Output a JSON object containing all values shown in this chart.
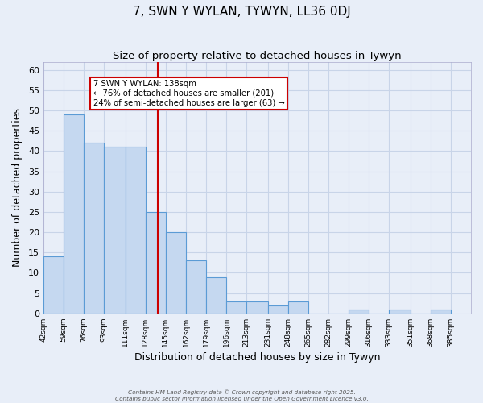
{
  "title": "7, SWN Y WYLAN, TYWYN, LL36 0DJ",
  "subtitle": "Size of property relative to detached houses in Tywyn",
  "xlabel": "Distribution of detached houses by size in Tywyn",
  "ylabel": "Number of detached properties",
  "bar_left_edges": [
    42,
    59,
    76,
    93,
    111,
    128,
    145,
    162,
    179,
    196,
    213,
    231,
    248,
    265,
    282,
    299,
    316,
    333,
    351,
    368
  ],
  "bar_widths": [
    17,
    17,
    17,
    18,
    17,
    17,
    17,
    17,
    17,
    17,
    18,
    17,
    17,
    17,
    17,
    17,
    17,
    18,
    17,
    17
  ],
  "bar_heights": [
    14,
    49,
    42,
    41,
    41,
    25,
    20,
    13,
    9,
    3,
    3,
    2,
    3,
    0,
    0,
    1,
    0,
    1,
    0,
    1
  ],
  "bar_color": "#c5d8f0",
  "bar_edge_color": "#5b9bd5",
  "xlim": [
    42,
    402
  ],
  "ylim": [
    0,
    62
  ],
  "yticks": [
    0,
    5,
    10,
    15,
    20,
    25,
    30,
    35,
    40,
    45,
    50,
    55,
    60
  ],
  "xtick_labels": [
    "42sqm",
    "59sqm",
    "76sqm",
    "93sqm",
    "111sqm",
    "128sqm",
    "145sqm",
    "162sqm",
    "179sqm",
    "196sqm",
    "213sqm",
    "231sqm",
    "248sqm",
    "265sqm",
    "282sqm",
    "299sqm",
    "316sqm",
    "333sqm",
    "351sqm",
    "368sqm",
    "385sqm"
  ],
  "xtick_positions": [
    42,
    59,
    76,
    93,
    111,
    128,
    145,
    162,
    179,
    196,
    213,
    231,
    248,
    265,
    282,
    299,
    316,
    333,
    351,
    368,
    385
  ],
  "vline_x": 138,
  "vline_color": "#cc0000",
  "annotation_lines": [
    "7 SWN Y WYLAN: 138sqm",
    "← 76% of detached houses are smaller (201)",
    "24% of semi-detached houses are larger (63) →"
  ],
  "grid_color": "#c8d4e8",
  "background_color": "#e8eef8",
  "footer_line1": "Contains HM Land Registry data © Crown copyright and database right 2025.",
  "footer_line2": "Contains public sector information licensed under the Open Government Licence v3.0."
}
